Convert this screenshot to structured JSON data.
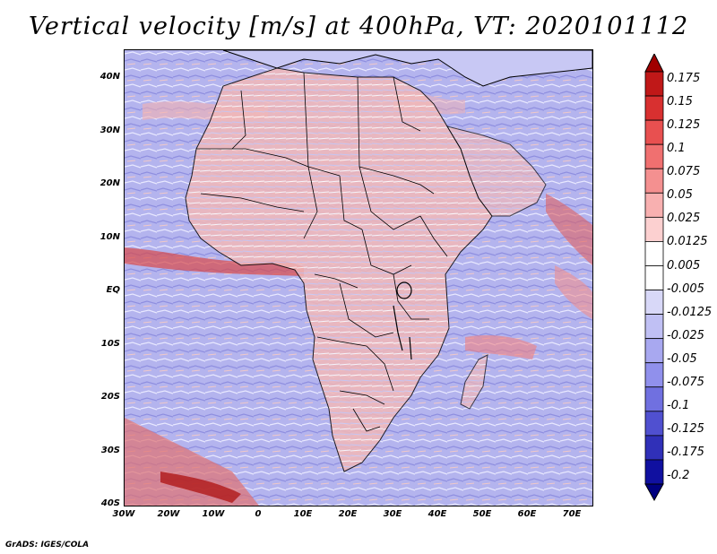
{
  "title": "Vertical velocity [m/s] at 400hPa, VT: 2020101112",
  "credit": "GrADS: IGES/COLA",
  "lat_labels": [
    "40N",
    "30N",
    "20N",
    "10N",
    "EQ",
    "10S",
    "20S",
    "30S",
    "40S"
  ],
  "lon_labels": [
    "30W",
    "20W",
    "10W",
    "0",
    "10E",
    "20E",
    "30E",
    "40E",
    "50E",
    "60E",
    "70E"
  ],
  "colorbar": {
    "labels": [
      "0.175",
      "0.15",
      "0.125",
      "0.1",
      "0.075",
      "0.05",
      "0.025",
      "0.0125",
      "0.005",
      "-0.005",
      "-0.0125",
      "-0.025",
      "-0.05",
      "-0.075",
      "-0.1",
      "-0.125",
      "-0.175",
      "-0.2"
    ],
    "colors": [
      "#a00000",
      "#c01818",
      "#d83030",
      "#e85050",
      "#f07070",
      "#f49090",
      "#f8b0b0",
      "#fcd0d0",
      "#ffffff",
      "#ffffff",
      "#d8d8f8",
      "#c0c0f4",
      "#a8a8f0",
      "#9090ec",
      "#7070e0",
      "#5050d0",
      "#3030b8",
      "#1010a0",
      "#000080"
    ]
  }
}
